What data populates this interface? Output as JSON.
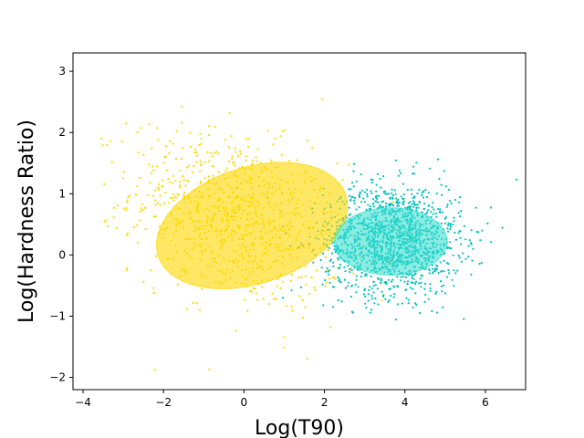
{
  "chart_data": {
    "type": "scatter",
    "title": "",
    "xlabel": "Log(T90)",
    "ylabel": "Log(Hardness Ratio)",
    "xlim": [
      -4.25,
      7.0
    ],
    "ylim": [
      -2.2,
      3.3
    ],
    "xticks": [
      -4,
      -2,
      0,
      2,
      4,
      6
    ],
    "yticks": [
      -2,
      -1,
      0,
      1,
      2,
      3
    ],
    "grid": false,
    "legend": "none",
    "series": [
      {
        "color": "#FFD700",
        "point_count": 900,
        "center": [
          -0.2,
          0.6
        ],
        "spread": [
          1.3,
          0.7
        ],
        "correlation": -0.3,
        "ellipse": {
          "center": [
            0.2,
            0.48
          ],
          "width": 4.9,
          "height": 1.9,
          "angle_deg": -18,
          "color": "#FFD700",
          "alpha": 0.6
        }
      },
      {
        "color": "#00BFBF",
        "point_count": 1500,
        "center": [
          3.7,
          0.25
        ],
        "spread": [
          0.85,
          0.45
        ],
        "correlation": 0,
        "ellipse": {
          "center": [
            3.65,
            0.22
          ],
          "width": 2.8,
          "height": 1.1,
          "angle_deg": 0,
          "color": "#40E0D0",
          "alpha": 0.6
        }
      }
    ]
  }
}
